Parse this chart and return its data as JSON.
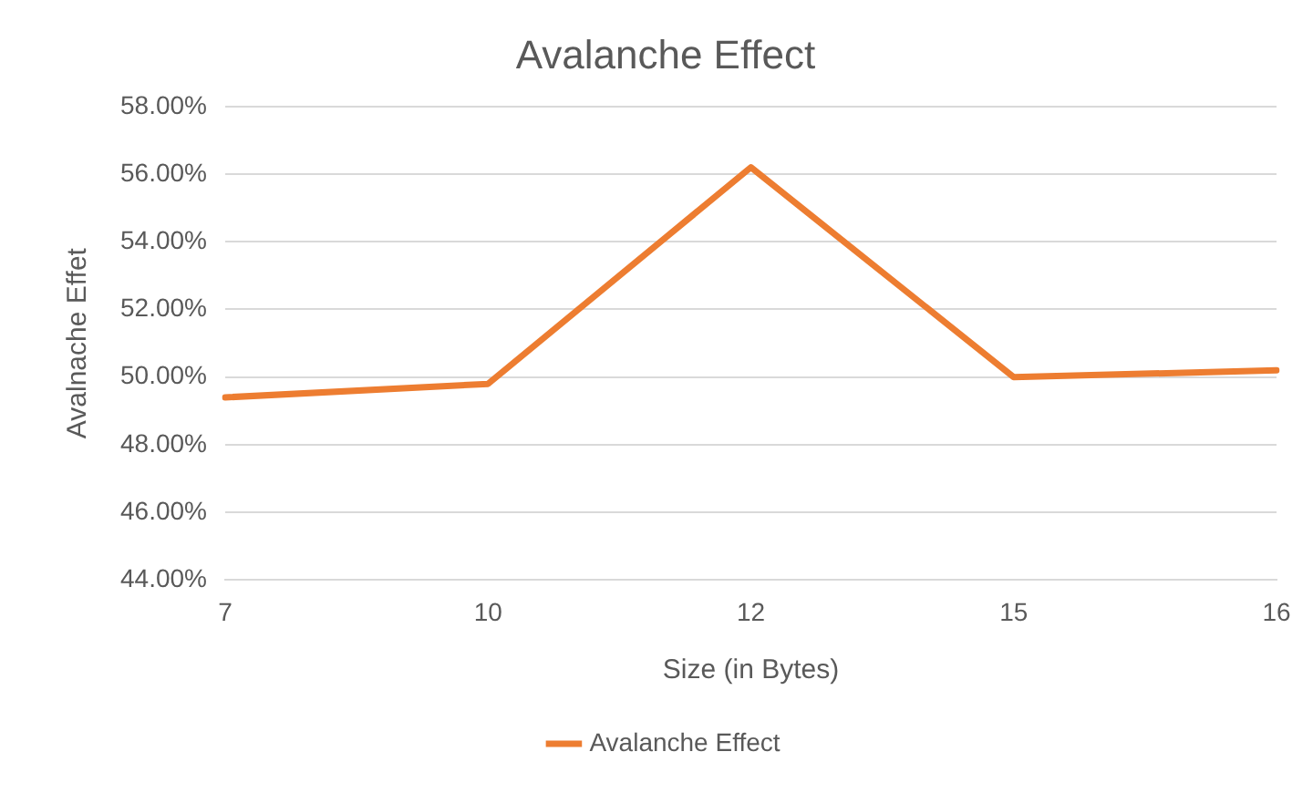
{
  "chart_data": {
    "type": "line",
    "title": "Avalanche Effect",
    "xlabel": "Size (in Bytes)",
    "ylabel": "Avalnache Effet",
    "categories": [
      "7",
      "10",
      "12",
      "15",
      "16"
    ],
    "series": [
      {
        "name": "Avalanche Effect",
        "color": "#ed7d31",
        "values": [
          49.4,
          49.8,
          56.2,
          50.0,
          50.2
        ]
      }
    ],
    "ylim": [
      44,
      58
    ],
    "yticks": [
      {
        "value": 44,
        "label": "44.00%"
      },
      {
        "value": 46,
        "label": "46.00%"
      },
      {
        "value": 48,
        "label": "48.00%"
      },
      {
        "value": 50,
        "label": "50.00%"
      },
      {
        "value": 52,
        "label": "52.00%"
      },
      {
        "value": 54,
        "label": "54.00%"
      },
      {
        "value": 56,
        "label": "56.00%"
      },
      {
        "value": 58,
        "label": "58.00%"
      }
    ],
    "grid": "y",
    "legend": "bottom",
    "marker": "none",
    "line_style": "solid"
  }
}
